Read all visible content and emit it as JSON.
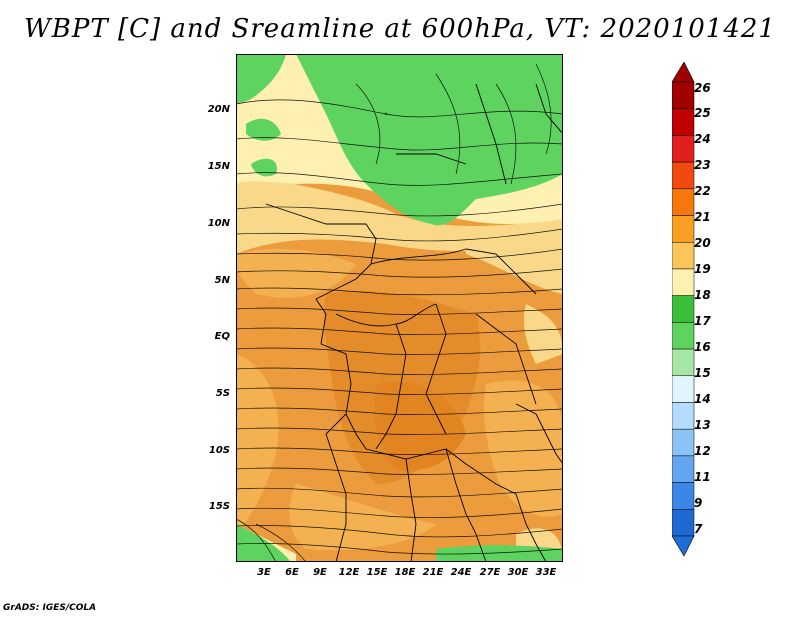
{
  "title": "WBPT [C] and Sreamline at 600hPa, VT: 2020101421",
  "credit": "GrADS: IGES/COLA",
  "lat_labels": [
    "20N",
    "15N",
    "10N",
    "5N",
    "EQ",
    "5S",
    "10S",
    "15S"
  ],
  "lon_labels": [
    "3E",
    "6E",
    "9E",
    "12E",
    "15E",
    "18E",
    "21E",
    "24E",
    "27E",
    "30E",
    "33E"
  ],
  "colorbar": {
    "labels": [
      "26",
      "25",
      "24",
      "23",
      "22",
      "21",
      "20",
      "19",
      "18",
      "17",
      "16",
      "15",
      "14",
      "13",
      "12",
      "11",
      "9",
      "7"
    ],
    "colors": [
      "#a00000",
      "#c00000",
      "#e01e1e",
      "#f04a10",
      "#f4780c",
      "#f7a023",
      "#f9c65a",
      "#fdf0b0",
      "#3bbf3b",
      "#5fd35f",
      "#a7e6a7",
      "#e1f5ff",
      "#b4dcff",
      "#8cc3f5",
      "#64a5f0",
      "#3c87e6",
      "#1e69d2"
    ],
    "over_color": "#a00000",
    "under_color": "#1e6ed7"
  },
  "map_colors": {
    "green": "#5fd35f",
    "light_yellow": "#fdf0b0",
    "yellow": "#f9d88a",
    "orange_light": "#f3b152",
    "orange": "#ec9c3c",
    "orange_dark": "#e48c2a",
    "border": "#000000"
  }
}
